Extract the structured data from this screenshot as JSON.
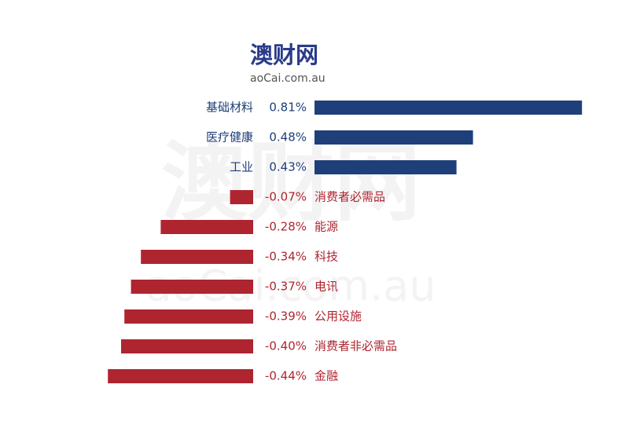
{
  "chart_data": {
    "type": "bar",
    "orientation": "horizontal",
    "brand": "澳财网",
    "site": "aoCai.com.au",
    "categories": [
      "基础材料",
      "医疗健康",
      "工业",
      "消费者必需品",
      "能源",
      "科技",
      "电讯",
      "公用设施",
      "消费者非必需品",
      "金融"
    ],
    "values": [
      0.81,
      0.48,
      0.43,
      -0.07,
      -0.28,
      -0.34,
      -0.37,
      -0.39,
      -0.4,
      -0.44
    ],
    "value_labels": [
      "0.81%",
      "0.48%",
      "0.43%",
      "-0.07%",
      "-0.28%",
      "-0.34%",
      "-0.37%",
      "-0.39%",
      "-0.40%",
      "-0.44%"
    ],
    "positive_color": "#1f3f7a",
    "negative_color": "#ae2530"
  }
}
